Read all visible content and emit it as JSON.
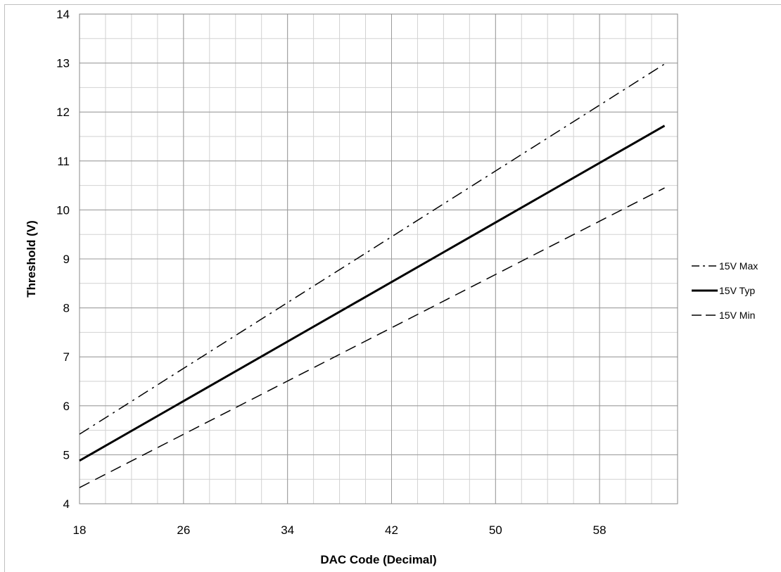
{
  "chart_data": {
    "type": "line",
    "title": "",
    "xlabel": "DAC Code  (Decimal)",
    "ylabel": "Threshold (V)",
    "xlim": [
      18,
      64
    ],
    "ylim": [
      4,
      14
    ],
    "x_ticks": [
      18,
      26,
      34,
      42,
      50,
      58
    ],
    "y_ticks": [
      4,
      5,
      6,
      7,
      8,
      9,
      10,
      11,
      12,
      13,
      14
    ],
    "x_minor_step": 2,
    "y_minor_step": 0.5,
    "grid": true,
    "legend_position": "right",
    "series": [
      {
        "name": "15V Max",
        "style": "dashdot",
        "width": 1.5,
        "x": [
          18,
          63
        ],
        "values": [
          5.42,
          12.98
        ]
      },
      {
        "name": "15V Typ",
        "style": "solid",
        "width": 3,
        "x": [
          18,
          63
        ],
        "values": [
          4.88,
          11.72
        ]
      },
      {
        "name": "15V Min",
        "style": "dash",
        "width": 1.5,
        "x": [
          18,
          63
        ],
        "values": [
          4.33,
          10.45
        ]
      }
    ],
    "colors": {
      "lines": "#000000",
      "major_grid": "#9a9a9a",
      "minor_grid": "#d2d2d2",
      "frame": "#c0c0c0"
    }
  }
}
